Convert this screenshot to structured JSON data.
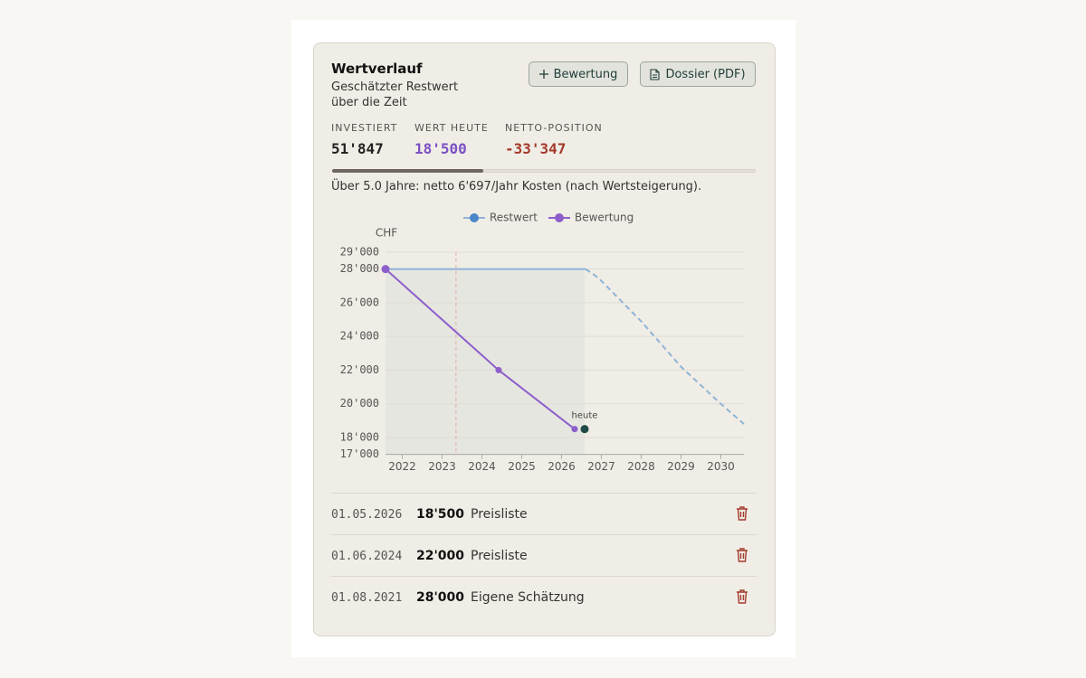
{
  "header": {
    "title": "Wertverlauf",
    "subtitle": "Geschätzter Restwert über die Zeit"
  },
  "buttons": [
    "Bewertung",
    "Dossier (PDF)"
  ],
  "stats": [
    {
      "label": "INVESTIERT",
      "value": 51847,
      "value_label": "51'847",
      "color": "#222222"
    },
    {
      "label": "WERT HEUTE",
      "value": 18500,
      "value_label": "18'500",
      "color": "#7b4fc4"
    },
    {
      "label": "NETTO-POSITION",
      "value": -33347,
      "value_label": "-33'347",
      "color": "#a33a2c"
    }
  ],
  "summary": "Über 5.0 Jahre: netto 6'697/Jahr Kosten (nach Wertsteigerung).",
  "chart_data": {
    "type": "line",
    "y_label": "CHF",
    "xlim": [
      2021.58,
      2030.58
    ],
    "xticks": [
      2022,
      2023,
      2024,
      2025,
      2026,
      2027,
      2028,
      2029,
      2030
    ],
    "ylim": [
      17000,
      29000
    ],
    "yticks": [
      {
        "value": 17000,
        "label": "17'000"
      },
      {
        "value": 18000,
        "label": "18'000"
      },
      {
        "value": 20000,
        "label": "20'000"
      },
      {
        "value": 22000,
        "label": "22'000"
      },
      {
        "value": 24000,
        "label": "24'000"
      },
      {
        "value": 26000,
        "label": "26'000"
      },
      {
        "value": 28000,
        "label": "28'000"
      },
      {
        "value": 29000,
        "label": "29'000"
      }
    ],
    "grid": true,
    "marker_x": 2023.35,
    "series": [
      {
        "name": "Restwert",
        "color": "#8fb3d6",
        "legend_color": "#4a86c8",
        "dashed_after": 2026.6,
        "x": [
          2021.58,
          2026.6,
          2026.8,
          2027,
          2028,
          2029,
          2030,
          2030.58
        ],
        "values": [
          28000,
          28000,
          27700,
          27300,
          24900,
          22200,
          20000,
          18800
        ]
      },
      {
        "name": "Bewertung",
        "color": "#8e5fcb",
        "legend_color": "#8e5fcb",
        "markers": true,
        "x": [
          2021.58,
          2024.42,
          2026.33
        ],
        "values": [
          28000,
          22000,
          18500
        ]
      }
    ],
    "annotation": {
      "text": "heute",
      "x": 2026.58,
      "y": 18500,
      "color": "#1f4a45"
    }
  },
  "entries": [
    {
      "date": "01.05.2026",
      "value": "18'500",
      "source": "Preisliste"
    },
    {
      "date": "01.06.2024",
      "value": "22'000",
      "source": "Preisliste"
    },
    {
      "date": "01.08.2021",
      "value": "28'000",
      "source": "Eigene Schätzung"
    }
  ]
}
